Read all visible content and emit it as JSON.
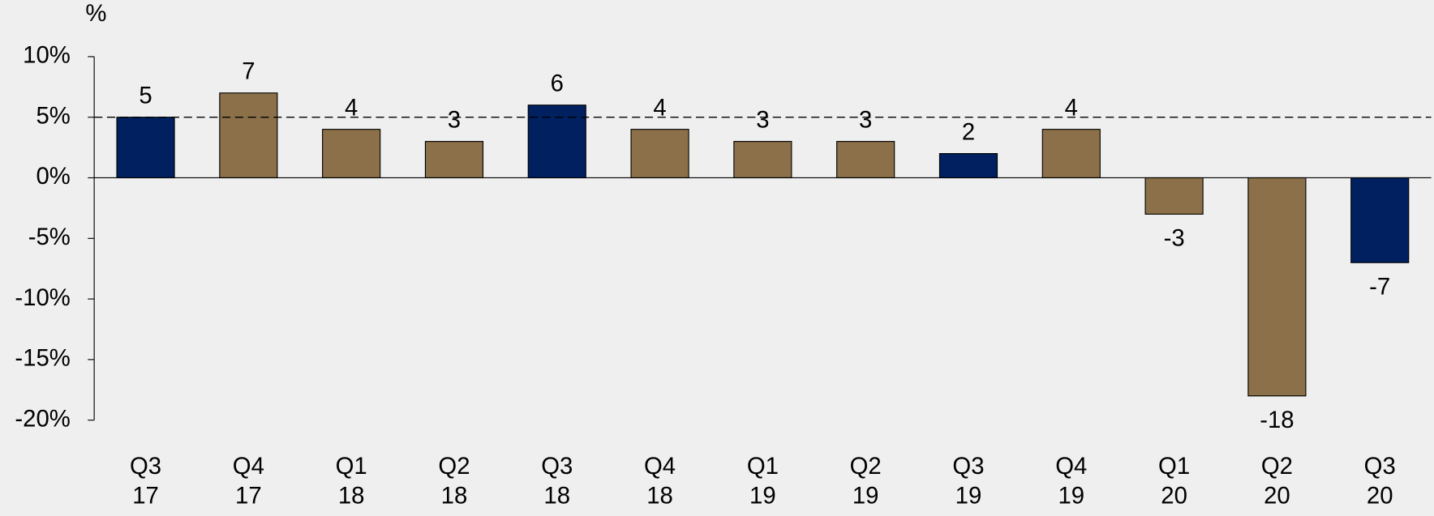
{
  "chart_data": {
    "type": "bar",
    "y_axis_label": "%",
    "categories": [
      "Q3 17",
      "Q4 17",
      "Q1 18",
      "Q2 18",
      "Q3 18",
      "Q4 18",
      "Q1 19",
      "Q2 19",
      "Q3 19",
      "Q4 19",
      "Q1 20",
      "Q2 20",
      "Q3 20"
    ],
    "values": [
      5,
      7,
      4,
      3,
      6,
      4,
      3,
      3,
      2,
      4,
      -3,
      -18,
      -7
    ],
    "colors": [
      "#002060",
      "#8b7049",
      "#8b7049",
      "#8b7049",
      "#002060",
      "#8b7049",
      "#8b7049",
      "#8b7049",
      "#002060",
      "#8b7049",
      "#8b7049",
      "#8b7049",
      "#002060"
    ],
    "ylim": [
      -20,
      10
    ],
    "yticks": [
      {
        "value": -20,
        "label": "-20%"
      },
      {
        "value": -15,
        "label": "-15%"
      },
      {
        "value": -10,
        "label": "-10%"
      },
      {
        "value": -5,
        "label": "-5%"
      },
      {
        "value": 0,
        "label": "0%"
      },
      {
        "value": 5,
        "label": "5%"
      },
      {
        "value": 10,
        "label": "10%"
      }
    ],
    "reference_line": 5,
    "grid": false
  }
}
